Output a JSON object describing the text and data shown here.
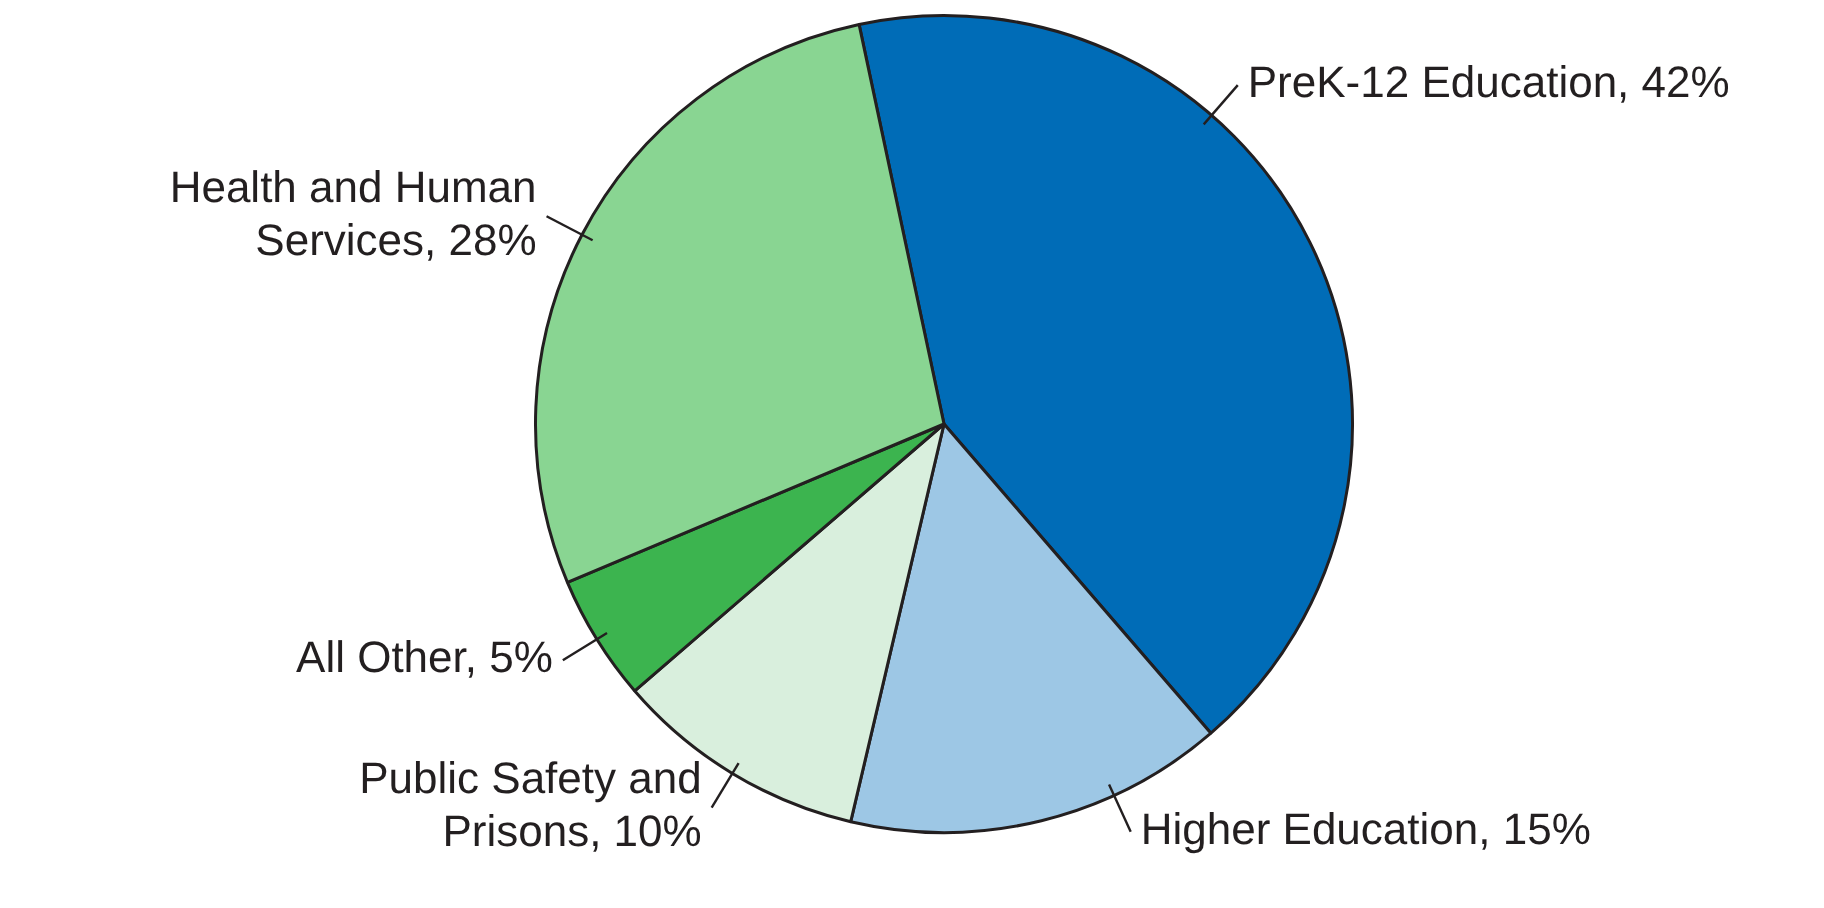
{
  "chart_data": {
    "type": "pie",
    "categories": [
      "PreK-12 Education",
      "Higher Education",
      "Public Safety and Prisons",
      "All Other",
      "Health and Human Services"
    ],
    "values": [
      42,
      15,
      10,
      5,
      28
    ],
    "value_labels": [
      "42%",
      "15%",
      "10%",
      "5%",
      "28%"
    ],
    "colors": [
      "#006cb7",
      "#9dc7e5",
      "#d9efdd",
      "#3cb44f",
      "#89d592"
    ],
    "legend": false
  }
}
